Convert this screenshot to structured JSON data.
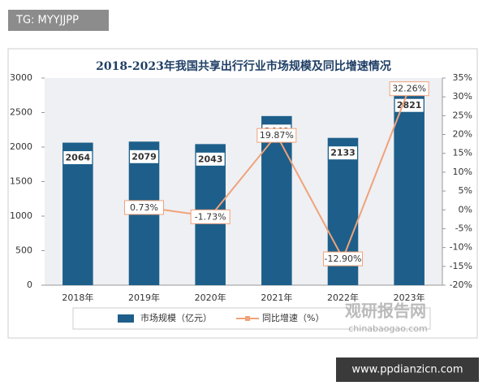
{
  "chart_data": {
    "type": "bar",
    "title": "2018-2023年我国共享出行行业市场规模及同比增速情况",
    "categories": [
      "2018年",
      "2019年",
      "2020年",
      "2021年",
      "2022年",
      "2023年"
    ],
    "series": [
      {
        "name": "市场规模（亿元）",
        "type": "bar",
        "color": "#1d5f8a",
        "values": [
          2064,
          2079,
          2043,
          2449,
          2133,
          2821
        ]
      },
      {
        "name": "同比增速（%）",
        "type": "line",
        "axis": "y2",
        "color": "#f0a27a",
        "values": [
          null,
          0.73,
          -1.73,
          19.87,
          -12.9,
          32.26
        ],
        "value_labels": [
          null,
          "0.73%",
          "-1.73%",
          "19.87%",
          "-12.90%",
          "32.26%"
        ]
      }
    ],
    "ylim": [
      0,
      3000
    ],
    "yticks": [
      0,
      500,
      1000,
      1500,
      2000,
      2500,
      3000
    ],
    "y2lim": [
      -20,
      35
    ],
    "y2ticks": [
      {
        "value": -20,
        "label": "-20%"
      },
      {
        "value": -15,
        "label": "-15%"
      },
      {
        "value": -10,
        "label": "-10%"
      },
      {
        "value": -5,
        "label": "-5%"
      },
      {
        "value": 0,
        "label": "0%"
      },
      {
        "value": 5,
        "label": "5%"
      },
      {
        "value": 10,
        "label": "10%"
      },
      {
        "value": 15,
        "label": "15%"
      },
      {
        "value": 20,
        "label": "20%"
      },
      {
        "value": 25,
        "label": "25%"
      },
      {
        "value": 30,
        "label": "30%"
      },
      {
        "value": 35,
        "label": "35%"
      }
    ],
    "annotations": [
      "TG: MYYJJPP",
      "观研报告网",
      "chinabaogao.com",
      "www.ppdianzicn.com"
    ]
  }
}
